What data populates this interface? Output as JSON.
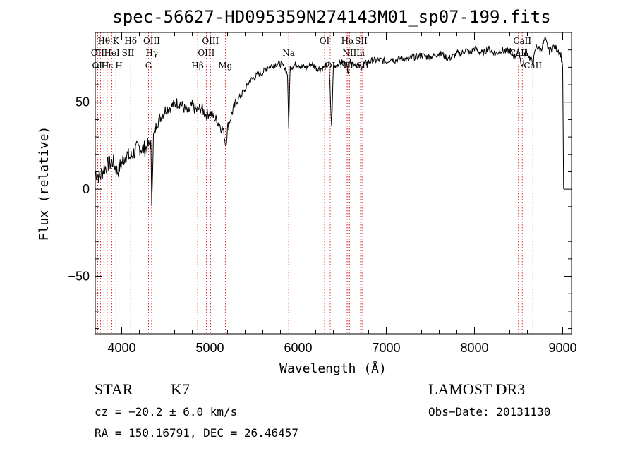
{
  "chart_data": {
    "type": "line",
    "title": "spec-56627-HD095359N274143M01_sp07-199.fits",
    "xlabel": "Wavelength (Å)",
    "ylabel": "Flux (relative)",
    "xlim": [
      3700,
      9100
    ],
    "ylim": [
      -83,
      90
    ],
    "xticks": [
      4000,
      5000,
      6000,
      7000,
      8000,
      9000
    ],
    "yticks": [
      -50,
      0,
      50
    ],
    "grid": false,
    "series": [
      {
        "x": [
          3700,
          3750,
          3800,
          3850,
          3900,
          3950,
          4000,
          4050,
          4100,
          4150,
          4200,
          4250,
          4300,
          4330,
          4340,
          4360,
          4400,
          4450,
          4500,
          4550,
          4600,
          4650,
          4700,
          4750,
          4800,
          4850,
          4900,
          4950,
          5000,
          5050,
          5100,
          5150,
          5180,
          5200,
          5250,
          5300,
          5350,
          5400,
          5450,
          5500,
          5550,
          5600,
          5650,
          5700,
          5750,
          5800,
          5850,
          5880,
          5893,
          5910,
          5950,
          6000,
          6050,
          6100,
          6150,
          6200,
          6250,
          6300,
          6350,
          6380,
          6400,
          6450,
          6500,
          6550,
          6563,
          6580,
          6600,
          6650,
          6700,
          6750,
          6800,
          6850,
          6900,
          6950,
          7000,
          7050,
          7100,
          7150,
          7200,
          7250,
          7300,
          7350,
          7400,
          7450,
          7500,
          7550,
          7600,
          7650,
          7700,
          7750,
          7800,
          7850,
          7900,
          7950,
          8000,
          8050,
          8100,
          8150,
          8200,
          8250,
          8300,
          8350,
          8400,
          8450,
          8500,
          8542,
          8580,
          8662,
          8700,
          8750,
          8800,
          8850,
          8900,
          8950,
          8980,
          9000,
          9010
        ],
        "y": [
          10,
          7,
          12,
          14,
          16,
          10,
          15,
          20,
          18,
          22,
          24,
          23,
          25,
          26,
          -8,
          30,
          38,
          42,
          46,
          47,
          49,
          50,
          47,
          44,
          48,
          45,
          47,
          43,
          44,
          41,
          38,
          34,
          26,
          35,
          44,
          50,
          54,
          57,
          62,
          64,
          66,
          67,
          70,
          71,
          72,
          72,
          70,
          66,
          35,
          70,
          71,
          72,
          70,
          70,
          72,
          70,
          69,
          70,
          72,
          35,
          70,
          72,
          73,
          72,
          66,
          73,
          73,
          72,
          70,
          72,
          73,
          74,
          74,
          74,
          73,
          75,
          74,
          75,
          75,
          74,
          76,
          76,
          77,
          76,
          76,
          77,
          78,
          77,
          75,
          76,
          78,
          78,
          80,
          78,
          81,
          79,
          78,
          81,
          79,
          78,
          80,
          79,
          80,
          76,
          79,
          70,
          80,
          72,
          82,
          80,
          86,
          79,
          82,
          80,
          77,
          71,
          0
        ]
      }
    ],
    "line_markers": [
      {
        "label": "Hθ",
        "wavelength": 3798,
        "row": 0
      },
      {
        "label": "OII",
        "wavelength": 3727,
        "row": 1
      },
      {
        "label": "OIII",
        "wavelength": 3760,
        "row": 2
      },
      {
        "label": "Hε",
        "wavelength": 3835,
        "row": 2
      },
      {
        "label": "HeI",
        "wavelength": 3889,
        "row": 1
      },
      {
        "label": "K",
        "wavelength": 3934,
        "row": 0
      },
      {
        "label": "H",
        "wavelength": 3969,
        "row": 2
      },
      {
        "label": "SII",
        "wavelength": 4072,
        "row": 1
      },
      {
        "label": "Hδ",
        "wavelength": 4102,
        "row": 0
      },
      {
        "label": "OIII",
        "wavelength": 4340,
        "row": 0
      },
      {
        "label": "Hγ",
        "wavelength": 4342,
        "row": 1
      },
      {
        "label": "G",
        "wavelength": 4304,
        "row": 2
      },
      {
        "label": "Hβ",
        "wavelength": 4861,
        "row": 2
      },
      {
        "label": "OIII",
        "wavelength": 4959,
        "row": 1
      },
      {
        "label": "OIII",
        "wavelength": 5007,
        "row": 0
      },
      {
        "label": "Mg",
        "wavelength": 5175,
        "row": 2
      },
      {
        "label": "Na",
        "wavelength": 5893,
        "row": 1
      },
      {
        "label": "OI",
        "wavelength": 6300,
        "row": 0
      },
      {
        "label": "OI",
        "wavelength": 6364,
        "row": 2
      },
      {
        "label": "Hα",
        "wavelength": 6563,
        "row": 0
      },
      {
        "label": "NII",
        "wavelength": 6583,
        "row": 1
      },
      {
        "label": "NII",
        "wavelength": 6548,
        "row": 2
      },
      {
        "label": "SII",
        "wavelength": 6716,
        "row": 0
      },
      {
        "label": "Li",
        "wavelength": 6708,
        "row": 1
      },
      {
        "label": "SII",
        "wavelength": 6731,
        "row": 2
      },
      {
        "label": "CaII",
        "wavelength": 8542,
        "row": 0
      },
      {
        "label": "CaII",
        "wavelength": 8498,
        "row": 1
      },
      {
        "label": "CaII",
        "wavelength": 8662,
        "row": 2
      }
    ]
  },
  "info": {
    "class_label": "STAR",
    "subclass": "K7",
    "survey": "LAMOST DR3",
    "cz": "cz = −20.2 ± 6.0 km/s",
    "obs_date": "Obs−Date: 20131130",
    "coords": "RA = 150.16791, DEC =  26.46457"
  }
}
